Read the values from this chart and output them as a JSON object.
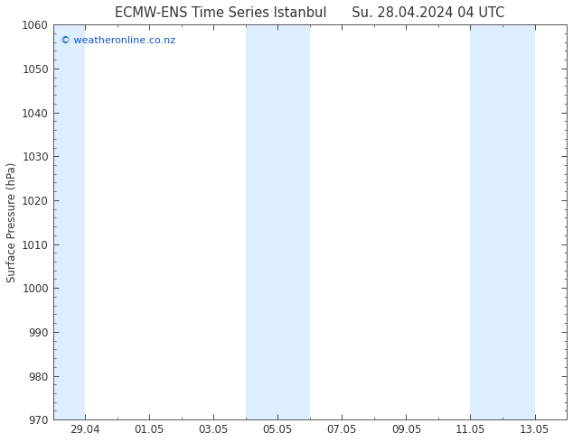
{
  "title": "ECMW-ENS Time Series Istanbul",
  "title2": "Su. 28.04.2024 04 UTC",
  "ylabel": "Surface Pressure (hPa)",
  "ylim": [
    970,
    1060
  ],
  "yticks": [
    970,
    980,
    990,
    1000,
    1010,
    1020,
    1030,
    1040,
    1050,
    1060
  ],
  "xlim_start": 0,
  "xlim_end": 15.5,
  "xtick_labels": [
    "29.04",
    "01.05",
    "03.05",
    "05.05",
    "07.05",
    "09.05",
    "11.05",
    "13.05"
  ],
  "xtick_positions": [
    1,
    3,
    5,
    7,
    9,
    11,
    13,
    15
  ],
  "background_color": "#ffffff",
  "plot_bg": "#ffffff",
  "band_color_light": "#ddeeff",
  "band_color_medium": "#ccd9ea",
  "watermark": "© weatheronline.co.nz",
  "watermark_color": "#1155cc",
  "title_color": "#333333",
  "figsize": [
    6.34,
    4.9
  ],
  "dpi": 100
}
